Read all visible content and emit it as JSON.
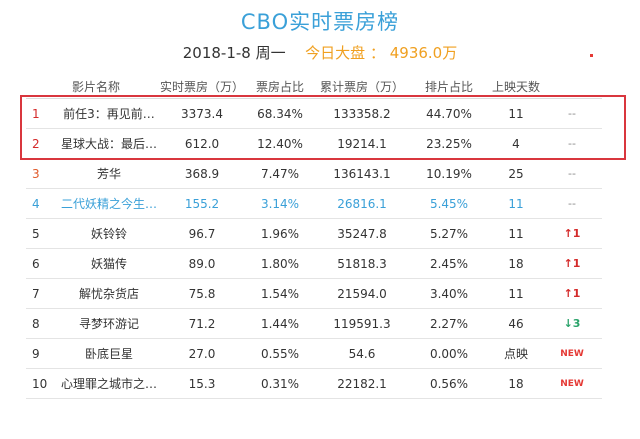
{
  "header": {
    "title": "CBO实时票房榜",
    "date": "2018-1-8 周一",
    "market_label": "今日大盘 ：",
    "market_value": "4936.0万"
  },
  "table": {
    "columns": [
      "影片名称",
      "实时票房（万）",
      "票房占比",
      "累计票房（万）",
      "排片占比",
      "上映天数"
    ],
    "rows": [
      {
        "rank": "1",
        "name": "前任3：再见前…",
        "realtime": "3373.4",
        "share": "68.34%",
        "cumulative": "133358.2",
        "schedule": "44.70%",
        "days": "11",
        "trend": "--"
      },
      {
        "rank": "2",
        "name": "星球大战：最后…",
        "realtime": "612.0",
        "share": "12.40%",
        "cumulative": "19214.1",
        "schedule": "23.25%",
        "days": "4",
        "trend": "--"
      },
      {
        "rank": "3",
        "name": "芳华",
        "realtime": "368.9",
        "share": "7.47%",
        "cumulative": "136143.1",
        "schedule": "10.19%",
        "days": "25",
        "trend": "--"
      },
      {
        "rank": "4",
        "name": "二代妖精之今生…",
        "realtime": "155.2",
        "share": "3.14%",
        "cumulative": "26816.1",
        "schedule": "5.45%",
        "days": "11",
        "trend": "--"
      },
      {
        "rank": "5",
        "name": "妖铃铃",
        "realtime": "96.7",
        "share": "1.96%",
        "cumulative": "35247.8",
        "schedule": "5.27%",
        "days": "11",
        "trend": "↑1"
      },
      {
        "rank": "6",
        "name": "妖猫传",
        "realtime": "89.0",
        "share": "1.80%",
        "cumulative": "51818.3",
        "schedule": "2.45%",
        "days": "18",
        "trend": "↑1"
      },
      {
        "rank": "7",
        "name": "解忧杂货店",
        "realtime": "75.8",
        "share": "1.54%",
        "cumulative": "21594.0",
        "schedule": "3.40%",
        "days": "11",
        "trend": "↑1"
      },
      {
        "rank": "8",
        "name": "寻梦环游记",
        "realtime": "71.2",
        "share": "1.44%",
        "cumulative": "119591.3",
        "schedule": "2.27%",
        "days": "46",
        "trend": "↓3"
      },
      {
        "rank": "9",
        "name": "卧底巨星",
        "realtime": "27.0",
        "share": "0.55%",
        "cumulative": "54.6",
        "schedule": "0.00%",
        "days": "点映",
        "trend": "NEW"
      },
      {
        "rank": "10",
        "name": "心理罪之城市之…",
        "realtime": "15.3",
        "share": "0.31%",
        "cumulative": "22182.1",
        "schedule": "0.56%",
        "days": "18",
        "trend": "NEW"
      }
    ]
  },
  "colors": {
    "title": "#3aa0d8",
    "market_value": "#f0a020",
    "highlight_border": "#d9363e",
    "trend_up": "#d42a2a",
    "trend_down": "#2aa36a",
    "row4_text": "#3aa0d8"
  }
}
